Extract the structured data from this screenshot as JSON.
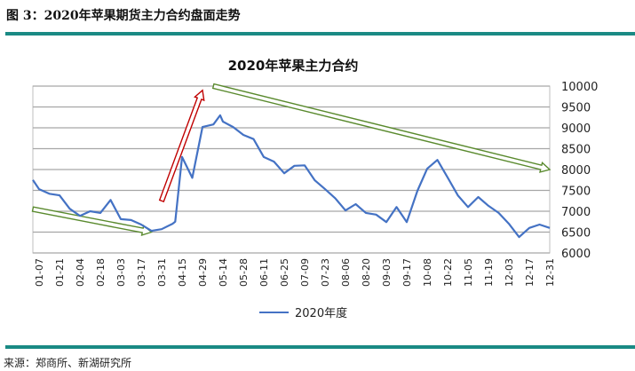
{
  "figure": {
    "title": "图 3：2020年苹果期货主力合约盘面走势",
    "source": "来源：郑商所、新湖研究所",
    "accent_color": "#1a8a84"
  },
  "chart_data": {
    "type": "line",
    "title": "2020年苹果主力合约",
    "xlabel": "",
    "ylabel": "",
    "ylim": [
      6000,
      10000
    ],
    "y_ticks": [
      "10000",
      "9500",
      "9000",
      "8500",
      "8000",
      "7500",
      "7000",
      "6500",
      "6000"
    ],
    "y_axis_side": "right",
    "grid": true,
    "legend_position": "bottom",
    "x_ticks": [
      "01-07",
      "01-21",
      "02-04",
      "02-18",
      "03-03",
      "03-17",
      "03-31",
      "04-15",
      "04-29",
      "05-14",
      "05-28",
      "06-11",
      "06-25",
      "07-09",
      "07-23",
      "08-06",
      "08-20",
      "09-03",
      "09-17",
      "10-08",
      "10-22",
      "11-05",
      "11-19",
      "12-03",
      "12-17",
      "12-31"
    ],
    "series": [
      {
        "name": "2020年度",
        "color": "#4472c4",
        "points": [
          [
            "01-02",
            7750
          ],
          [
            "01-07",
            7530
          ],
          [
            "01-14",
            7420
          ],
          [
            "01-21",
            7380
          ],
          [
            "01-28",
            7060
          ],
          [
            "02-04",
            6890
          ],
          [
            "02-11",
            7000
          ],
          [
            "02-18",
            6960
          ],
          [
            "02-25",
            7270
          ],
          [
            "03-03",
            6810
          ],
          [
            "03-10",
            6790
          ],
          [
            "03-17",
            6680
          ],
          [
            "03-24",
            6530
          ],
          [
            "03-31",
            6570
          ],
          [
            "04-08",
            6700
          ],
          [
            "04-10",
            6750
          ],
          [
            "04-15",
            8300
          ],
          [
            "04-22",
            7800
          ],
          [
            "04-29",
            9020
          ],
          [
            "05-07",
            9080
          ],
          [
            "05-12",
            9300
          ],
          [
            "05-14",
            9150
          ],
          [
            "05-21",
            9020
          ],
          [
            "05-28",
            8830
          ],
          [
            "06-04",
            8730
          ],
          [
            "06-11",
            8300
          ],
          [
            "06-18",
            8190
          ],
          [
            "06-25",
            7910
          ],
          [
            "07-02",
            8090
          ],
          [
            "07-09",
            8100
          ],
          [
            "07-16",
            7740
          ],
          [
            "07-23",
            7530
          ],
          [
            "07-30",
            7310
          ],
          [
            "08-06",
            7020
          ],
          [
            "08-13",
            7170
          ],
          [
            "08-20",
            6960
          ],
          [
            "08-27",
            6920
          ],
          [
            "09-03",
            6740
          ],
          [
            "09-10",
            7100
          ],
          [
            "09-17",
            6740
          ],
          [
            "09-28",
            7490
          ],
          [
            "10-08",
            8020
          ],
          [
            "10-15",
            8230
          ],
          [
            "10-22",
            7810
          ],
          [
            "10-29",
            7380
          ],
          [
            "11-05",
            7100
          ],
          [
            "11-12",
            7340
          ],
          [
            "11-19",
            7130
          ],
          [
            "11-26",
            6960
          ],
          [
            "12-03",
            6700
          ],
          [
            "12-10",
            6380
          ],
          [
            "12-17",
            6600
          ],
          [
            "12-24",
            6680
          ],
          [
            "12-31",
            6600
          ]
        ]
      }
    ],
    "annotations": [
      {
        "type": "arrow",
        "color": "#5a8a2e",
        "meaning": "downtrend",
        "from": [
          "01-02",
          7050
        ],
        "to": [
          "03-24",
          6500
        ]
      },
      {
        "type": "arrow",
        "color": "#c00000",
        "meaning": "uptrend",
        "from": [
          "03-31",
          7250
        ],
        "to": [
          "04-29",
          9900
        ]
      },
      {
        "type": "arrow",
        "color": "#5a8a2e",
        "meaning": "downtrend",
        "from": [
          "05-07",
          10000
        ],
        "to": [
          "12-31",
          8000
        ]
      }
    ]
  }
}
